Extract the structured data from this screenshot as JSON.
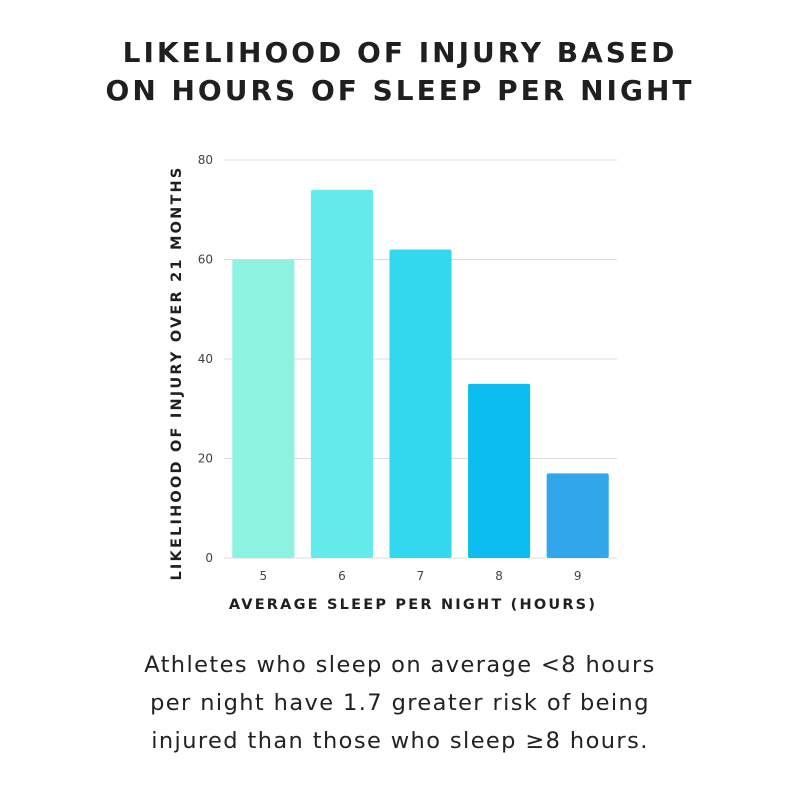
{
  "title": {
    "line1": "LIKELIHOOD OF INJURY BASED",
    "line2": "ON HOURS OF SLEEP PER NIGHT"
  },
  "chart_data": {
    "type": "bar",
    "title": "LIKELIHOOD OF INJURY BASED ON HOURS OF SLEEP PER NIGHT",
    "xlabel": "AVERAGE SLEEP PER NIGHT (HOURS)",
    "ylabel": "LIKELIHOOD OF INJURY OVER 21 MONTHS",
    "categories": [
      "5",
      "6",
      "7",
      "8",
      "9"
    ],
    "values": [
      60,
      74,
      62,
      35,
      17
    ],
    "colors": [
      "#8ef2e0",
      "#63eaea",
      "#33d8ee",
      "#0cbdf0",
      "#32a6ea"
    ],
    "ylim": [
      0,
      80
    ],
    "yticks": [
      "0",
      "20",
      "40",
      "60",
      "80"
    ],
    "grid": true,
    "legend": "none"
  },
  "caption": {
    "line1": "Athletes who sleep on average <8 hours",
    "line2": "per night have 1.7 greater risk of being",
    "line3": "injured than those who sleep ≥8 hours."
  }
}
